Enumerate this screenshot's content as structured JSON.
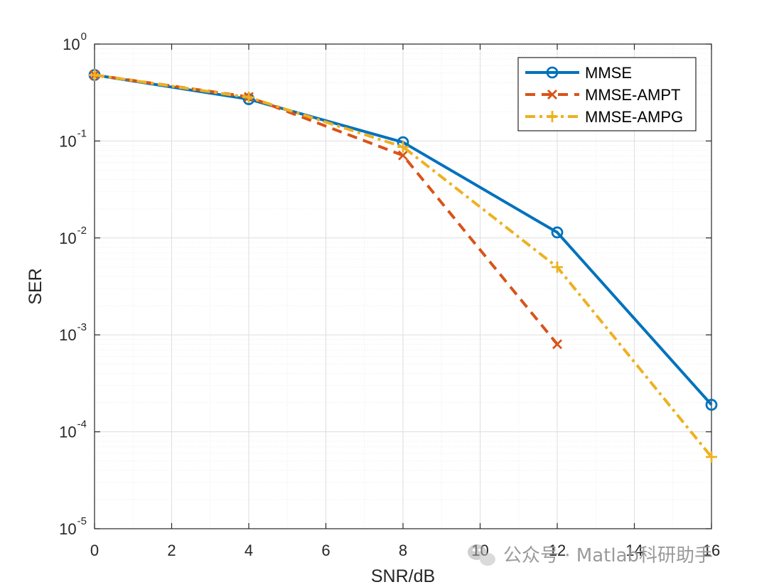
{
  "chart_data": {
    "type": "line",
    "xlabel": "SNR/dB",
    "ylabel": "SER",
    "xlim": [
      0,
      16
    ],
    "ylim": [
      1e-05,
      1
    ],
    "yscale": "log",
    "grid": true,
    "minor_grid": true,
    "legend_position": "top-right",
    "xticks": [
      "0",
      "2",
      "4",
      "6",
      "8",
      "10",
      "12",
      "14",
      "16"
    ],
    "yticks": [
      {
        "base": "10",
        "exp": "0"
      },
      {
        "base": "10",
        "exp": "-1"
      },
      {
        "base": "10",
        "exp": "-2"
      },
      {
        "base": "10",
        "exp": "-3"
      },
      {
        "base": "10",
        "exp": "-4"
      },
      {
        "base": "10",
        "exp": "-5"
      }
    ],
    "series": [
      {
        "name": "MMSE",
        "color": "#0072BD",
        "marker": "circle",
        "dash": "solid",
        "x": [
          0,
          4,
          8,
          12,
          16
        ],
        "y": [
          0.48,
          0.27,
          0.097,
          0.0114,
          0.00019
        ]
      },
      {
        "name": "MMSE-AMPT",
        "color": "#D95319",
        "marker": "x",
        "dash": "dashed",
        "x": [
          0,
          4,
          8,
          12
        ],
        "y": [
          0.48,
          0.285,
          0.071,
          0.0008
        ]
      },
      {
        "name": "MMSE-AMPG",
        "color": "#EDB120",
        "marker": "plus",
        "dash": "dashdot",
        "x": [
          0,
          4,
          8,
          12,
          16
        ],
        "y": [
          0.48,
          0.282,
          0.087,
          0.005,
          5.5e-05
        ]
      }
    ]
  },
  "watermark": {
    "text": "公众号 · Matlab科研助手",
    "icon": "wechat-icon"
  }
}
